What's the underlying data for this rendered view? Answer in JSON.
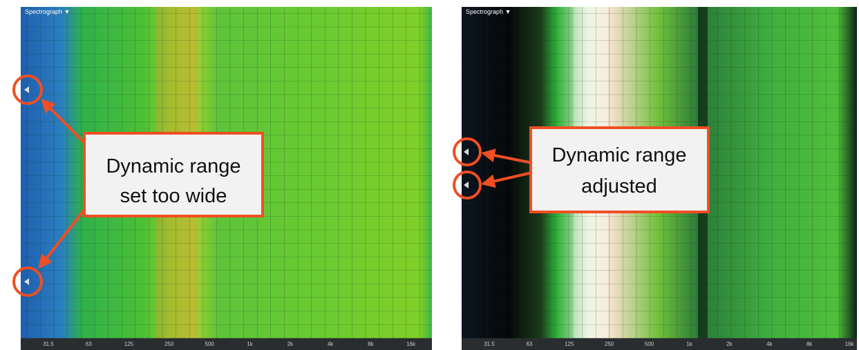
{
  "panels": [
    {
      "title": "Spectrograph ▼",
      "freq_labels": [
        "31.5",
        "63",
        "125",
        "250",
        "500",
        "1k",
        "2k",
        "4k",
        "8k",
        "16k"
      ],
      "callout": [
        "Dynamic range",
        "set too wide"
      ]
    },
    {
      "title": "Spectrograph ▼",
      "freq_labels": [
        "31.5",
        "63",
        "125",
        "250",
        "500",
        "1k",
        "2k",
        "4k",
        "8k",
        "16k"
      ],
      "callout": [
        "Dynamic range",
        "adjusted"
      ]
    }
  ]
}
